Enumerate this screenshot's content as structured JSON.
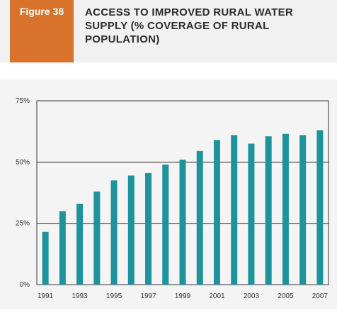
{
  "figure": {
    "label": "Figure 38",
    "title_lines": [
      "ACCESS TO IMPROVED RURAL WATER",
      "SUPPLY (% COVERAGE OF RURAL",
      "POPULATION)"
    ]
  },
  "colors": {
    "accent": "#d9732c",
    "bar": "#1f939c",
    "grid": "#333333",
    "header_bg": "#f1f1f1",
    "chart_bg": "#f4f4f4"
  },
  "chart_data": {
    "type": "bar",
    "title": "ACCESS TO IMPROVED RURAL WATER SUPPLY (% COVERAGE OF RURAL POPULATION)",
    "xlabel": "",
    "ylabel": "",
    "categories": [
      "1991",
      "1992",
      "1993",
      "1994",
      "1995",
      "1996",
      "1997",
      "1998",
      "1999",
      "2000",
      "2001",
      "2002",
      "2003",
      "2004",
      "2005",
      "2006",
      "2007"
    ],
    "values": [
      21.5,
      30,
      33,
      38,
      42.5,
      44.5,
      45.5,
      49,
      51,
      54.5,
      59,
      61,
      57.5,
      60.5,
      61.5,
      61,
      63
    ],
    "ylim": [
      0,
      75
    ],
    "yticks": [
      "0%",
      "25%",
      "50%",
      "75%"
    ],
    "ytick_values": [
      0,
      25,
      50,
      75
    ],
    "xtick_labels": [
      "1991",
      "1993",
      "1995",
      "1997",
      "1999",
      "2001",
      "2003",
      "2005",
      "2007"
    ],
    "grid": true,
    "legend": "none"
  }
}
